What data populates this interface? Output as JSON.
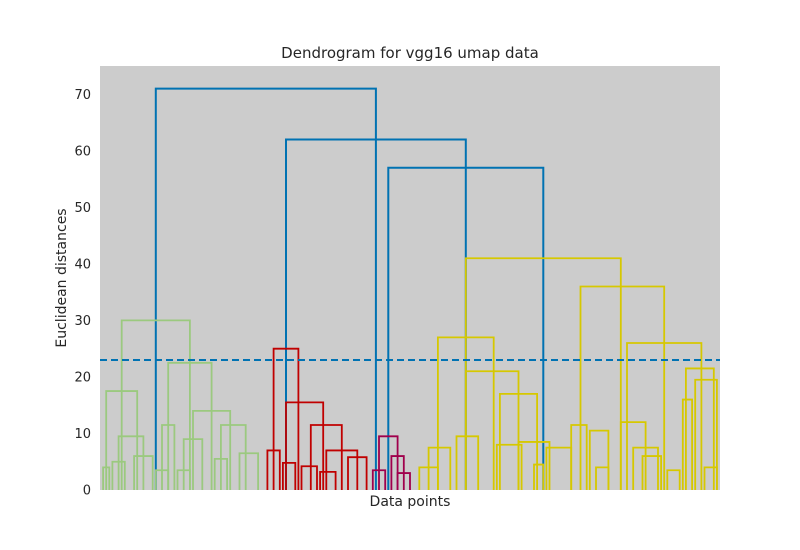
{
  "chart_data": {
    "type": "dendrogram",
    "title": "Dendrogram for vgg16 umap data",
    "xlabel": "Data points",
    "ylabel": "Euclidean distances",
    "ylim": [
      0,
      75
    ],
    "yticks": [
      0,
      10,
      20,
      30,
      40,
      50,
      60,
      70
    ],
    "xlim": [
      0,
      100
    ],
    "grid": false,
    "background": "#cccccc",
    "cut_line": {
      "y": 23,
      "color": "#0072b2",
      "style": "dashed"
    },
    "colors": {
      "root": "#0072b2",
      "green": "#9bc97f",
      "red": "#c00000",
      "magenta": "#a0004c",
      "yellow": "#d6c800"
    },
    "merges": [
      {
        "xl": 9.0,
        "xr": 44.5,
        "h": 71,
        "color": "root"
      },
      {
        "xl": 30.0,
        "xr": 59.0,
        "h": 62,
        "color": "root"
      },
      {
        "xl": 46.5,
        "xr": 71.5,
        "h": 57,
        "color": "root"
      },
      {
        "xl": 3.5,
        "xr": 14.5,
        "h": 30,
        "color": "green"
      },
      {
        "xl": 1.0,
        "xr": 6.0,
        "h": 17.5,
        "color": "green"
      },
      {
        "xl": 11.0,
        "xr": 18.0,
        "h": 22.5,
        "color": "green"
      },
      {
        "xl": 3.0,
        "xr": 7.0,
        "h": 9.5,
        "color": "green"
      },
      {
        "xl": 2.0,
        "xr": 4.0,
        "h": 5.0,
        "color": "green"
      },
      {
        "xl": 5.5,
        "xr": 8.5,
        "h": 6.0,
        "color": "green"
      },
      {
        "xl": 10.0,
        "xr": 12.0,
        "h": 11.5,
        "color": "green"
      },
      {
        "xl": 15.0,
        "xr": 21.0,
        "h": 14.0,
        "color": "green"
      },
      {
        "xl": 13.5,
        "xr": 16.5,
        "h": 9.0,
        "color": "green"
      },
      {
        "xl": 19.5,
        "xr": 23.5,
        "h": 11.5,
        "color": "green"
      },
      {
        "xl": 18.5,
        "xr": 20.5,
        "h": 5.5,
        "color": "green"
      },
      {
        "xl": 22.5,
        "xr": 25.5,
        "h": 6.5,
        "color": "green"
      },
      {
        "xl": 0.5,
        "xr": 1.5,
        "h": 4.0,
        "color": "green"
      },
      {
        "xl": 12.5,
        "xr": 14.5,
        "h": 3.5,
        "color": "green"
      },
      {
        "xl": 9.0,
        "xr": 11.0,
        "h": 3.5,
        "color": "green"
      },
      {
        "xl": 28.0,
        "xr": 32.0,
        "h": 25,
        "color": "red"
      },
      {
        "xl": 30.0,
        "xr": 36.0,
        "h": 15.5,
        "color": "red"
      },
      {
        "xl": 34.0,
        "xr": 39.0,
        "h": 11.5,
        "color": "red"
      },
      {
        "xl": 36.5,
        "xr": 41.5,
        "h": 7.0,
        "color": "red"
      },
      {
        "xl": 40.0,
        "xr": 43.0,
        "h": 5.8,
        "color": "red"
      },
      {
        "xl": 27.0,
        "xr": 29.0,
        "h": 7.0,
        "color": "red"
      },
      {
        "xl": 29.5,
        "xr": 31.5,
        "h": 4.8,
        "color": "red"
      },
      {
        "xl": 32.5,
        "xr": 35.0,
        "h": 4.2,
        "color": "red"
      },
      {
        "xl": 35.5,
        "xr": 38.0,
        "h": 3.2,
        "color": "red"
      },
      {
        "xl": 45.0,
        "xr": 48.0,
        "h": 9.5,
        "color": "magenta"
      },
      {
        "xl": 47.0,
        "xr": 49.0,
        "h": 6.0,
        "color": "magenta"
      },
      {
        "xl": 44.0,
        "xr": 46.0,
        "h": 3.5,
        "color": "magenta"
      },
      {
        "xl": 48.0,
        "xr": 50.0,
        "h": 3.0,
        "color": "magenta"
      },
      {
        "xl": 59.0,
        "xr": 84.0,
        "h": 41,
        "color": "yellow"
      },
      {
        "xl": 54.5,
        "xr": 63.5,
        "h": 27,
        "color": "yellow"
      },
      {
        "xl": 77.5,
        "xr": 91.0,
        "h": 36,
        "color": "yellow"
      },
      {
        "xl": 59.0,
        "xr": 67.5,
        "h": 21,
        "color": "yellow"
      },
      {
        "xl": 85.0,
        "xr": 97.0,
        "h": 26,
        "color": "yellow"
      },
      {
        "xl": 53.0,
        "xr": 56.5,
        "h": 7.5,
        "color": "yellow"
      },
      {
        "xl": 57.5,
        "xr": 61.0,
        "h": 9.5,
        "color": "yellow"
      },
      {
        "xl": 64.5,
        "xr": 70.5,
        "h": 17.0,
        "color": "yellow"
      },
      {
        "xl": 64.0,
        "xr": 68.0,
        "h": 8.0,
        "color": "yellow"
      },
      {
        "xl": 67.5,
        "xr": 72.5,
        "h": 8.5,
        "color": "yellow"
      },
      {
        "xl": 72.0,
        "xr": 76.0,
        "h": 7.5,
        "color": "yellow"
      },
      {
        "xl": 76.0,
        "xr": 78.5,
        "h": 11.5,
        "color": "yellow"
      },
      {
        "xl": 79.0,
        "xr": 82.0,
        "h": 10.5,
        "color": "yellow"
      },
      {
        "xl": 84.0,
        "xr": 88.0,
        "h": 12.0,
        "color": "yellow"
      },
      {
        "xl": 86.0,
        "xr": 90.0,
        "h": 7.5,
        "color": "yellow"
      },
      {
        "xl": 87.5,
        "xr": 90.5,
        "h": 6.0,
        "color": "yellow"
      },
      {
        "xl": 94.5,
        "xr": 99.0,
        "h": 21.5,
        "color": "yellow"
      },
      {
        "xl": 96.0,
        "xr": 99.5,
        "h": 19.5,
        "color": "yellow"
      },
      {
        "xl": 94.0,
        "xr": 95.5,
        "h": 16.0,
        "color": "yellow"
      },
      {
        "xl": 51.5,
        "xr": 54.5,
        "h": 4.0,
        "color": "yellow"
      },
      {
        "xl": 70.0,
        "xr": 71.5,
        "h": 4.5,
        "color": "yellow"
      },
      {
        "xl": 80.0,
        "xr": 82.0,
        "h": 4.0,
        "color": "yellow"
      },
      {
        "xl": 91.5,
        "xr": 93.5,
        "h": 3.5,
        "color": "yellow"
      },
      {
        "xl": 97.5,
        "xr": 99.5,
        "h": 4.0,
        "color": "yellow"
      }
    ]
  }
}
